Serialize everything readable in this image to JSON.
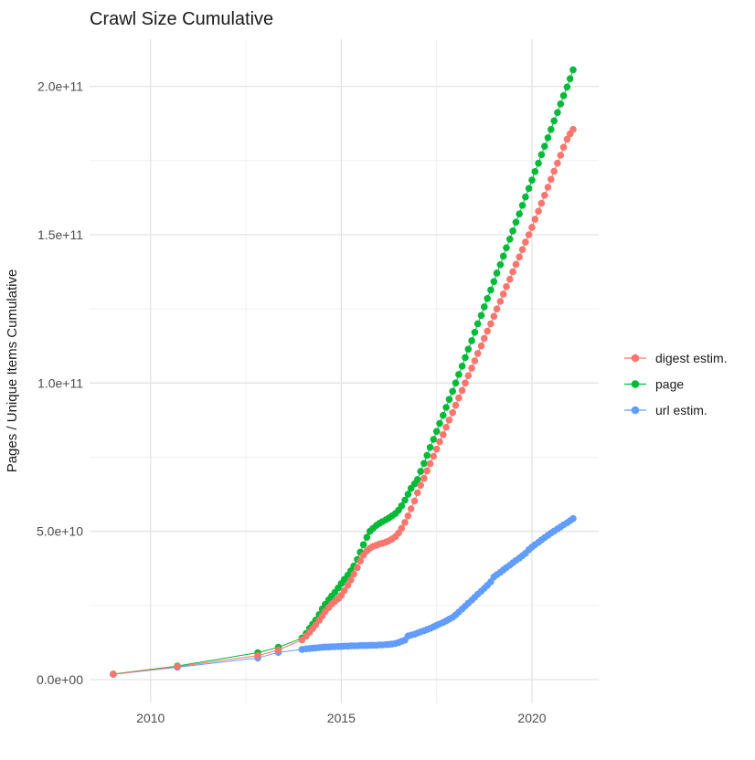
{
  "chart_data": {
    "type": "scatter",
    "title": "Crawl Size Cumulative",
    "xlabel": "",
    "ylabel": "Pages / Unique Items Cumulative",
    "legend_position": "right",
    "grid": "on",
    "units": "values in billions (1e9) of pages / unique items",
    "x_domain": [
      2008.4,
      2021.75
    ],
    "y_domain_billions": [
      -8.0,
      215.9
    ],
    "x_ticks": [
      {
        "value": 2010,
        "label": "2010"
      },
      {
        "value": 2015,
        "label": "2015"
      },
      {
        "value": 2020,
        "label": "2020"
      }
    ],
    "x_minor_ticks": [
      2012.5,
      2017.5
    ],
    "y_ticks": [
      {
        "value_billions": 0,
        "label": "0.0e+00"
      },
      {
        "value_billions": 50,
        "label": "5.0e+10"
      },
      {
        "value_billions": 100,
        "label": "1.0e+11"
      },
      {
        "value_billions": 150,
        "label": "1.5e+11"
      },
      {
        "value_billions": 200,
        "label": "2.0e+11"
      }
    ],
    "y_minor_ticks_billions": [
      25,
      75,
      125,
      175
    ],
    "draw_order": [
      "page",
      "url estim.",
      "digest estim."
    ],
    "series": [
      {
        "name": "digest estim.",
        "color": "#F8766D",
        "points": [
          [
            2009.02,
            1.8
          ],
          [
            2010.7,
            4.4
          ],
          [
            2012.81,
            8.1
          ],
          [
            2013.35,
            10.0
          ],
          [
            2013.97,
            13.4
          ],
          [
            2014.08,
            14.7
          ],
          [
            2014.17,
            16.0
          ],
          [
            2014.25,
            17.2
          ],
          [
            2014.33,
            18.5
          ],
          [
            2014.42,
            20.0
          ],
          [
            2014.5,
            21.5
          ],
          [
            2014.58,
            23.0
          ],
          [
            2014.67,
            24.3
          ],
          [
            2014.75,
            25.5
          ],
          [
            2014.83,
            26.4
          ],
          [
            2014.92,
            27.3
          ],
          [
            2015.0,
            28.4
          ],
          [
            2015.08,
            30.0
          ],
          [
            2015.17,
            31.8
          ],
          [
            2015.25,
            33.6
          ],
          [
            2015.33,
            35.6
          ],
          [
            2015.42,
            37.8
          ],
          [
            2015.5,
            40.0
          ],
          [
            2015.58,
            42.0
          ],
          [
            2015.67,
            43.4
          ],
          [
            2015.75,
            44.3
          ],
          [
            2015.83,
            44.9
          ],
          [
            2015.92,
            45.3
          ],
          [
            2016.0,
            45.7
          ],
          [
            2016.08,
            46.0
          ],
          [
            2016.17,
            46.4
          ],
          [
            2016.25,
            46.8
          ],
          [
            2016.33,
            47.4
          ],
          [
            2016.42,
            48.2
          ],
          [
            2016.5,
            49.4
          ],
          [
            2016.58,
            51.0
          ],
          [
            2016.67,
            53.0
          ],
          [
            2016.75,
            55.2
          ],
          [
            2016.83,
            57.6
          ],
          [
            2016.92,
            60.2
          ],
          [
            2017.0,
            63.0
          ],
          [
            2017.08,
            65.5
          ],
          [
            2017.17,
            67.9
          ],
          [
            2017.25,
            70.4
          ],
          [
            2017.33,
            72.8
          ],
          [
            2017.42,
            75.3
          ],
          [
            2017.5,
            77.7
          ],
          [
            2017.58,
            80.2
          ],
          [
            2017.67,
            82.6
          ],
          [
            2017.75,
            85.1
          ],
          [
            2017.83,
            87.5
          ],
          [
            2017.92,
            90.0
          ],
          [
            2018.0,
            92.5
          ],
          [
            2018.08,
            95.0
          ],
          [
            2018.17,
            97.5
          ],
          [
            2018.25,
            100.0
          ],
          [
            2018.33,
            102.5
          ],
          [
            2018.42,
            105.0
          ],
          [
            2018.5,
            107.5
          ],
          [
            2018.58,
            110.0
          ],
          [
            2018.67,
            112.5
          ],
          [
            2018.75,
            115.0
          ],
          [
            2018.83,
            117.5
          ],
          [
            2018.92,
            120.0
          ],
          [
            2019.0,
            122.5
          ],
          [
            2019.08,
            125.0
          ],
          [
            2019.17,
            127.5
          ],
          [
            2019.25,
            130.0
          ],
          [
            2019.33,
            132.5
          ],
          [
            2019.42,
            135.0
          ],
          [
            2019.5,
            137.5
          ],
          [
            2019.58,
            140.0
          ],
          [
            2019.67,
            142.5
          ],
          [
            2019.75,
            145.0
          ],
          [
            2019.83,
            147.5
          ],
          [
            2019.92,
            150.0
          ],
          [
            2020.0,
            152.5
          ],
          [
            2020.08,
            155.2
          ],
          [
            2020.17,
            157.9
          ],
          [
            2020.25,
            160.6
          ],
          [
            2020.33,
            163.3
          ],
          [
            2020.42,
            166.0
          ],
          [
            2020.5,
            168.7
          ],
          [
            2020.58,
            171.4
          ],
          [
            2020.67,
            174.1
          ],
          [
            2020.75,
            176.8
          ],
          [
            2020.83,
            179.5
          ],
          [
            2020.92,
            182.2
          ],
          [
            2021.0,
            184.0
          ],
          [
            2021.08,
            185.5
          ]
        ]
      },
      {
        "name": "page",
        "color": "#00BA38",
        "points": [
          [
            2009.02,
            1.9
          ],
          [
            2010.7,
            4.6
          ],
          [
            2012.81,
            9.1
          ],
          [
            2013.35,
            10.9
          ],
          [
            2013.97,
            14.0
          ],
          [
            2014.08,
            15.6
          ],
          [
            2014.17,
            17.3
          ],
          [
            2014.25,
            18.7
          ],
          [
            2014.33,
            20.1
          ],
          [
            2014.42,
            21.9
          ],
          [
            2014.5,
            23.8
          ],
          [
            2014.58,
            25.4
          ],
          [
            2014.67,
            26.9
          ],
          [
            2014.75,
            28.2
          ],
          [
            2014.83,
            29.4
          ],
          [
            2014.92,
            30.9
          ],
          [
            2015.0,
            32.4
          ],
          [
            2015.08,
            33.8
          ],
          [
            2015.17,
            35.2
          ],
          [
            2015.25,
            36.7
          ],
          [
            2015.33,
            38.3
          ],
          [
            2015.42,
            40.5
          ],
          [
            2015.5,
            43.0
          ],
          [
            2015.58,
            45.5
          ],
          [
            2015.67,
            48.0
          ],
          [
            2015.75,
            50.0
          ],
          [
            2015.83,
            51.0
          ],
          [
            2015.92,
            52.0
          ],
          [
            2016.0,
            52.7
          ],
          [
            2016.08,
            53.3
          ],
          [
            2016.17,
            53.9
          ],
          [
            2016.25,
            54.5
          ],
          [
            2016.33,
            55.2
          ],
          [
            2016.42,
            56.0
          ],
          [
            2016.5,
            57.1
          ],
          [
            2016.58,
            58.6
          ],
          [
            2016.67,
            60.5
          ],
          [
            2016.75,
            62.5
          ],
          [
            2016.83,
            64.5
          ],
          [
            2016.92,
            66.0
          ],
          [
            2017.0,
            67.5
          ],
          [
            2017.08,
            70.2
          ],
          [
            2017.17,
            72.9
          ],
          [
            2017.25,
            75.6
          ],
          [
            2017.33,
            78.3
          ],
          [
            2017.42,
            81.0
          ],
          [
            2017.5,
            83.7
          ],
          [
            2017.58,
            86.4
          ],
          [
            2017.67,
            89.1
          ],
          [
            2017.75,
            91.8
          ],
          [
            2017.83,
            94.5
          ],
          [
            2017.92,
            97.2
          ],
          [
            2018.0,
            100.0
          ],
          [
            2018.08,
            102.9
          ],
          [
            2018.17,
            105.7
          ],
          [
            2018.25,
            108.6
          ],
          [
            2018.33,
            111.4
          ],
          [
            2018.42,
            114.3
          ],
          [
            2018.5,
            117.1
          ],
          [
            2018.58,
            120.0
          ],
          [
            2018.67,
            122.8
          ],
          [
            2018.75,
            125.7
          ],
          [
            2018.83,
            128.5
          ],
          [
            2018.92,
            131.4
          ],
          [
            2019.0,
            134.2
          ],
          [
            2019.08,
            137.1
          ],
          [
            2019.17,
            139.9
          ],
          [
            2019.25,
            142.8
          ],
          [
            2019.33,
            145.6
          ],
          [
            2019.42,
            148.5
          ],
          [
            2019.5,
            151.3
          ],
          [
            2019.58,
            154.2
          ],
          [
            2019.67,
            157.0
          ],
          [
            2019.75,
            159.9
          ],
          [
            2019.83,
            162.7
          ],
          [
            2019.92,
            165.6
          ],
          [
            2020.0,
            168.4
          ],
          [
            2020.08,
            171.3
          ],
          [
            2020.17,
            174.1
          ],
          [
            2020.25,
            177.0
          ],
          [
            2020.33,
            179.8
          ],
          [
            2020.42,
            182.7
          ],
          [
            2020.5,
            185.5
          ],
          [
            2020.58,
            188.4
          ],
          [
            2020.67,
            191.2
          ],
          [
            2020.75,
            194.1
          ],
          [
            2020.83,
            196.9
          ],
          [
            2020.92,
            199.8
          ],
          [
            2021.0,
            202.6
          ],
          [
            2021.08,
            205.6
          ]
        ]
      },
      {
        "name": "url estim.",
        "color": "#619CFF",
        "points": [
          [
            2009.02,
            1.8
          ],
          [
            2010.7,
            4.15
          ],
          [
            2012.81,
            7.3
          ],
          [
            2013.35,
            9.2
          ],
          [
            2013.97,
            10.2
          ],
          [
            2014.08,
            10.4
          ],
          [
            2014.17,
            10.5
          ],
          [
            2014.25,
            10.6
          ],
          [
            2014.33,
            10.7
          ],
          [
            2014.42,
            10.8
          ],
          [
            2014.5,
            10.9
          ],
          [
            2014.58,
            11.0
          ],
          [
            2014.67,
            11.0
          ],
          [
            2014.75,
            11.1
          ],
          [
            2014.83,
            11.1
          ],
          [
            2014.92,
            11.2
          ],
          [
            2015.0,
            11.2
          ],
          [
            2015.08,
            11.3
          ],
          [
            2015.17,
            11.3
          ],
          [
            2015.25,
            11.4
          ],
          [
            2015.33,
            11.4
          ],
          [
            2015.42,
            11.4
          ],
          [
            2015.5,
            11.5
          ],
          [
            2015.58,
            11.5
          ],
          [
            2015.67,
            11.5
          ],
          [
            2015.75,
            11.6
          ],
          [
            2015.83,
            11.6
          ],
          [
            2015.92,
            11.6
          ],
          [
            2016.0,
            11.7
          ],
          [
            2016.08,
            11.7
          ],
          [
            2016.17,
            11.8
          ],
          [
            2016.25,
            11.9
          ],
          [
            2016.33,
            12.0
          ],
          [
            2016.42,
            12.2
          ],
          [
            2016.5,
            12.5
          ],
          [
            2016.58,
            12.9
          ],
          [
            2016.67,
            13.3
          ],
          [
            2016.75,
            14.7
          ],
          [
            2016.83,
            15.0
          ],
          [
            2016.92,
            15.3
          ],
          [
            2017.0,
            15.7
          ],
          [
            2017.08,
            16.1
          ],
          [
            2017.17,
            16.5
          ],
          [
            2017.25,
            16.9
          ],
          [
            2017.33,
            17.3
          ],
          [
            2017.42,
            17.8
          ],
          [
            2017.5,
            18.3
          ],
          [
            2017.58,
            18.8
          ],
          [
            2017.67,
            19.3
          ],
          [
            2017.75,
            19.8
          ],
          [
            2017.83,
            20.4
          ],
          [
            2017.92,
            21.0
          ],
          [
            2018.0,
            21.8
          ],
          [
            2018.08,
            22.8
          ],
          [
            2018.17,
            23.8
          ],
          [
            2018.25,
            24.8
          ],
          [
            2018.33,
            25.8
          ],
          [
            2018.42,
            26.8
          ],
          [
            2018.5,
            27.8
          ],
          [
            2018.58,
            28.8
          ],
          [
            2018.67,
            29.8
          ],
          [
            2018.75,
            30.8
          ],
          [
            2018.83,
            31.8
          ],
          [
            2018.92,
            33.0
          ],
          [
            2019.0,
            34.6
          ],
          [
            2019.08,
            35.4
          ],
          [
            2019.17,
            36.2
          ],
          [
            2019.25,
            37.0
          ],
          [
            2019.33,
            37.8
          ],
          [
            2019.42,
            38.6
          ],
          [
            2019.5,
            39.4
          ],
          [
            2019.58,
            40.2
          ],
          [
            2019.67,
            41.0
          ],
          [
            2019.75,
            41.8
          ],
          [
            2019.83,
            42.6
          ],
          [
            2019.92,
            43.8
          ],
          [
            2020.0,
            44.7
          ],
          [
            2020.08,
            45.5
          ],
          [
            2020.17,
            46.3
          ],
          [
            2020.25,
            47.1
          ],
          [
            2020.33,
            47.9
          ],
          [
            2020.42,
            48.7
          ],
          [
            2020.5,
            49.4
          ],
          [
            2020.58,
            50.1
          ],
          [
            2020.67,
            50.8
          ],
          [
            2020.75,
            51.5
          ],
          [
            2020.83,
            52.2
          ],
          [
            2020.92,
            52.9
          ],
          [
            2021.0,
            53.6
          ],
          [
            2021.08,
            54.3
          ]
        ]
      }
    ]
  }
}
